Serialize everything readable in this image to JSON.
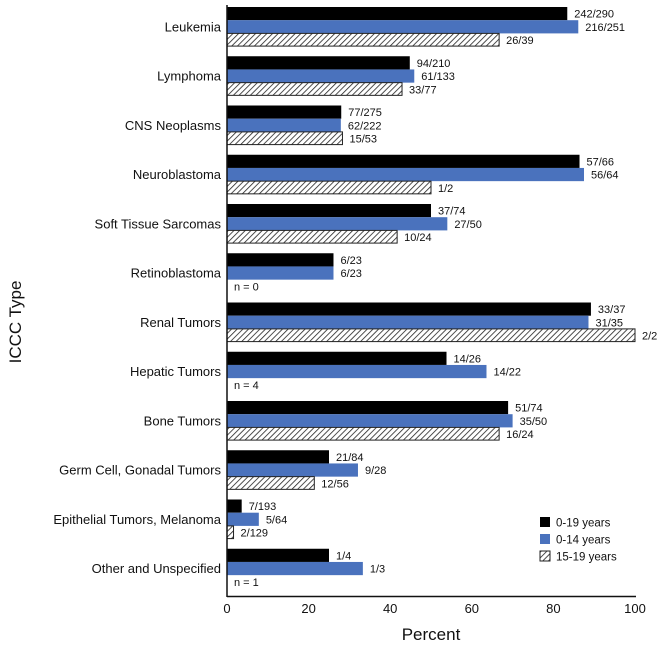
{
  "chart_data": {
    "type": "bar",
    "orientation": "horizontal",
    "title": "",
    "xlabel": "Percent",
    "ylabel": "ICCC Type",
    "xlim": [
      0,
      100
    ],
    "xticks": [
      "0",
      "20",
      "40",
      "60",
      "80",
      "100"
    ],
    "grid": false,
    "legend_position": "bottom-right",
    "colors": {
      "0-19 years": "#000000",
      "0-14 years": "#4a72bd",
      "15-19 years": "hatched"
    },
    "categories": [
      "Leukemia",
      "Lymphoma",
      "CNS Neoplasms",
      "Neuroblastoma",
      "Soft Tissue Sarcomas",
      "Retinoblastoma",
      "Renal Tumors",
      "Hepatic Tumors",
      "Bone Tumors",
      "Germ Cell, Gonadal Tumors",
      "Epithelial Tumors, Melanoma",
      "Other and Unspecified"
    ],
    "series": [
      {
        "name": "0-19 years",
        "labels": [
          "242/290",
          "94/210",
          "77/275",
          "57/66",
          "37/74",
          "6/23",
          "33/37",
          "14/26",
          "51/74",
          "21/84",
          "7/193",
          "1/4"
        ],
        "values": [
          83.4,
          44.8,
          28.0,
          86.4,
          50.0,
          26.1,
          89.2,
          53.8,
          68.9,
          25.0,
          3.6,
          25.0
        ]
      },
      {
        "name": "0-14 years",
        "labels": [
          "216/251",
          "61/133",
          "62/222",
          "56/64",
          "27/50",
          "6/23",
          "31/35",
          "14/22",
          "35/50",
          "9/28",
          "5/64",
          "1/3"
        ],
        "values": [
          86.1,
          45.9,
          27.9,
          87.5,
          54.0,
          26.1,
          88.6,
          63.6,
          70.0,
          32.1,
          7.8,
          33.3
        ]
      },
      {
        "name": "15-19 years",
        "labels": [
          "26/39",
          "33/77",
          "15/53",
          "1/2",
          "10/24",
          null,
          "2/2",
          null,
          "16/24",
          "12/56",
          "2/129",
          null
        ],
        "values": [
          66.7,
          42.9,
          28.3,
          50.0,
          41.7,
          null,
          100.0,
          null,
          66.7,
          21.4,
          1.6,
          null
        ]
      }
    ],
    "annotations": [
      {
        "category": "Retinoblastoma",
        "text": "n = 0"
      },
      {
        "category": "Hepatic Tumors",
        "text": "n = 4"
      },
      {
        "category": "Other and Unspecified",
        "text": "n = 1"
      }
    ]
  }
}
